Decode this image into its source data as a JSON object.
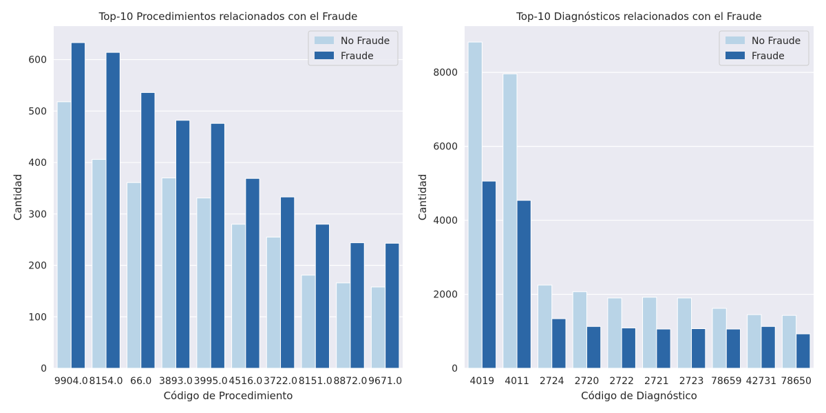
{
  "colors": {
    "no_fraude": "#b9d4e7",
    "fraude": "#2c67a6",
    "plot_bg": "#eaeaf2",
    "grid": "#ffffff"
  },
  "chart_data": [
    {
      "type": "bar",
      "title": "Top-10 Procedimientos relacionados con el Fraude",
      "xlabel": "Código de Procedimiento",
      "ylabel": "Cantidad",
      "categories": [
        "9904.0",
        "8154.0",
        "66.0",
        "3893.0",
        "3995.0",
        "4516.0",
        "3722.0",
        "8151.0",
        "8872.0",
        "9671.0"
      ],
      "series": [
        {
          "name": "No Fraude",
          "values": [
            518,
            406,
            361,
            370,
            331,
            280,
            255,
            181,
            166,
            158
          ]
        },
        {
          "name": "Fraude",
          "values": [
            633,
            614,
            536,
            482,
            476,
            369,
            333,
            280,
            244,
            243
          ]
        }
      ],
      "ylim": [
        0,
        665
      ],
      "yticks": [
        0,
        100,
        200,
        300,
        400,
        500,
        600
      ],
      "grid": true,
      "legend_position": "top-right"
    },
    {
      "type": "bar",
      "title": "Top-10 Diagnósticos relacionados con el Fraude",
      "xlabel": "Código de Diagnóstico",
      "ylabel": "Cantidad",
      "categories": [
        "4019",
        "4011",
        "2724",
        "2720",
        "2722",
        "2721",
        "2723",
        "78659",
        "42731",
        "78650"
      ],
      "series": [
        {
          "name": "No Fraude",
          "values": [
            8820,
            7960,
            2250,
            2070,
            1900,
            1920,
            1900,
            1620,
            1450,
            1430
          ]
        },
        {
          "name": "Fraude",
          "values": [
            5060,
            4540,
            1340,
            1130,
            1090,
            1060,
            1070,
            1060,
            1130,
            930
          ]
        }
      ],
      "ylim": [
        0,
        9250
      ],
      "yticks": [
        0,
        2000,
        4000,
        6000,
        8000
      ],
      "grid": true,
      "legend_position": "top-right"
    }
  ]
}
